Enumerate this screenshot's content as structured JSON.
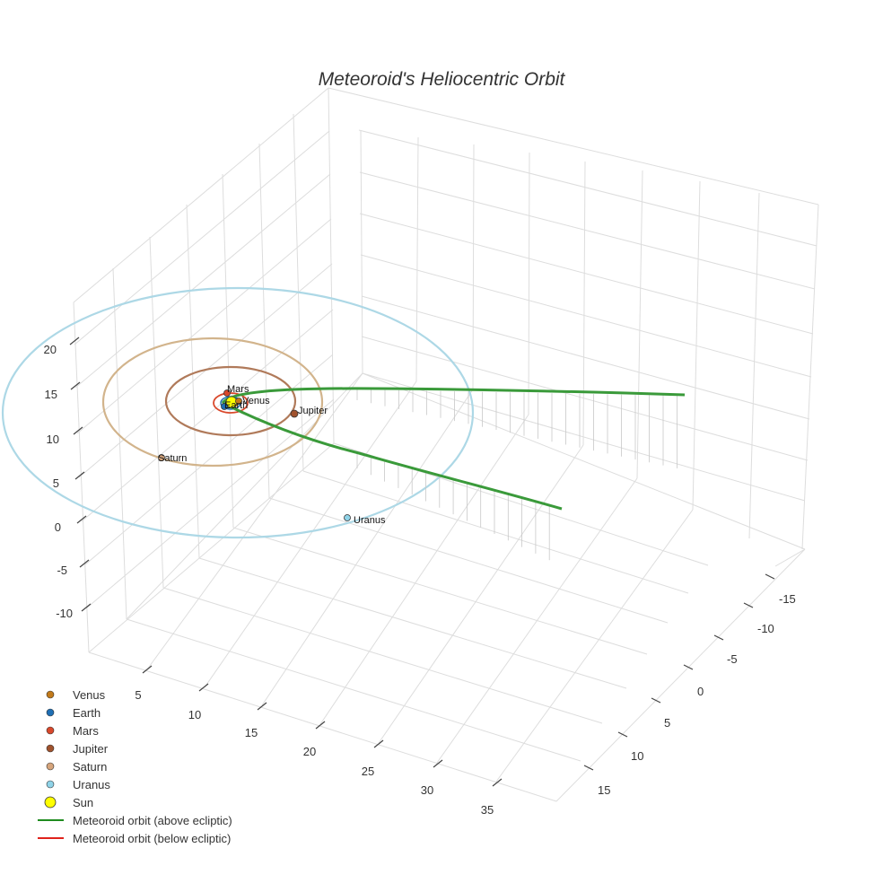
{
  "chart_data": {
    "type": "scatter3d",
    "title": "Meteoroid's Heliocentric Orbit",
    "axes": {
      "x": {
        "ticks": [
          5,
          10,
          15,
          20,
          25,
          30,
          35
        ]
      },
      "y": {
        "ticks": [
          -15,
          -10,
          -5,
          0,
          5,
          10,
          15
        ]
      },
      "z": {
        "ticks": [
          -10,
          -5,
          0,
          5,
          10,
          15,
          20
        ]
      }
    },
    "planets": [
      {
        "name": "Venus",
        "color": "#c27a1b"
      },
      {
        "name": "Earth",
        "color": "#1f6fb4"
      },
      {
        "name": "Mars",
        "color": "#d9482b"
      },
      {
        "name": "Jupiter",
        "color": "#a0522d"
      },
      {
        "name": "Saturn",
        "color": "#d6a57c"
      },
      {
        "name": "Uranus",
        "color": "#8fd3e8"
      }
    ],
    "sun": {
      "name": "Sun",
      "color": "#ffff00"
    },
    "meteoroid": {
      "above": {
        "name": "Meteoroid orbit (above ecliptic)",
        "color": "#1f8c1f"
      },
      "below": {
        "name": "Meteoroid orbit (below ecliptic)",
        "color": "#e0231c"
      }
    },
    "legend": [
      "Venus",
      "Earth",
      "Mars",
      "Jupiter",
      "Saturn",
      "Uranus",
      "Sun",
      "Meteoroid orbit (above ecliptic)",
      "Meteoroid orbit (below ecliptic)"
    ],
    "legend_position": "bottom-left"
  }
}
